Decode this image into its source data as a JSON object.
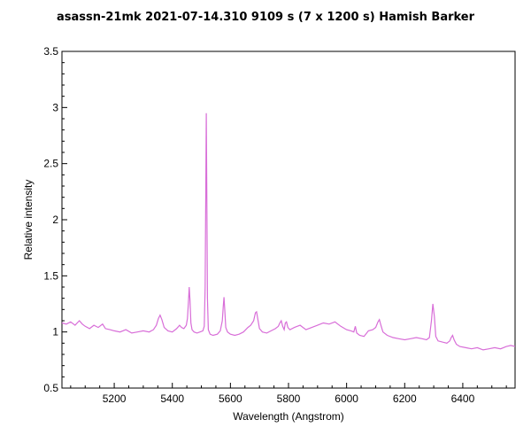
{
  "chart_data": {
    "type": "line",
    "title": "asassn-21mk   2021-07-14.310   9109 s (7 x 1200 s)   Hamish Barker",
    "xlabel": "Wavelength (Angstrom)",
    "ylabel": "Relative intensity",
    "xlim": [
      5020,
      6580
    ],
    "ylim": [
      0.5,
      3.5
    ],
    "x_ticks": [
      5200,
      5400,
      5600,
      5800,
      6000,
      6200,
      6400
    ],
    "x_tick_labels": [
      "5200",
      "5400",
      "5600",
      "5800",
      "6000",
      "6200",
      "6400"
    ],
    "y_ticks": [
      0.5,
      1,
      1.5,
      2,
      2.5,
      3,
      3.5
    ],
    "y_tick_labels": [
      "0.5",
      "1",
      "1.5",
      "2",
      "2.5",
      "3",
      "3.5"
    ],
    "grid": false,
    "series": [
      {
        "color": "#d86ed8",
        "x": [
          5020,
          5035,
          5050,
          5065,
          5080,
          5090,
          5100,
          5115,
          5130,
          5145,
          5160,
          5170,
          5185,
          5200,
          5220,
          5240,
          5260,
          5280,
          5300,
          5320,
          5335,
          5345,
          5352,
          5358,
          5364,
          5372,
          5385,
          5400,
          5415,
          5425,
          5432,
          5440,
          5448,
          5452,
          5455,
          5458,
          5461,
          5464,
          5468,
          5475,
          5485,
          5495,
          5505,
          5510,
          5513,
          5515,
          5517,
          5519,
          5521,
          5524,
          5530,
          5540,
          5555,
          5565,
          5572,
          5575,
          5578,
          5581,
          5584,
          5590,
          5600,
          5615,
          5630,
          5645,
          5660,
          5670,
          5680,
          5686,
          5690,
          5694,
          5700,
          5710,
          5725,
          5740,
          5755,
          5765,
          5770,
          5775,
          5780,
          5785,
          5789,
          5793,
          5798,
          5805,
          5820,
          5840,
          5860,
          5880,
          5900,
          5920,
          5940,
          5960,
          5980,
          6000,
          6015,
          6025,
          6030,
          6035,
          6045,
          6060,
          6075,
          6090,
          6100,
          6108,
          6113,
          6118,
          6125,
          6140,
          6160,
          6180,
          6200,
          6220,
          6240,
          6260,
          6275,
          6285,
          6292,
          6297,
          6302,
          6307,
          6315,
          6330,
          6345,
          6355,
          6360,
          6365,
          6370,
          6378,
          6390,
          6410,
          6430,
          6450,
          6470,
          6490,
          6510,
          6530,
          6550,
          6565,
          6580
        ],
        "y": [
          1.08,
          1.07,
          1.09,
          1.06,
          1.1,
          1.07,
          1.05,
          1.03,
          1.06,
          1.04,
          1.07,
          1.03,
          1.02,
          1.01,
          1.0,
          1.02,
          0.99,
          1.0,
          1.01,
          1.0,
          1.02,
          1.06,
          1.12,
          1.15,
          1.11,
          1.04,
          1.01,
          1.0,
          1.03,
          1.06,
          1.04,
          1.03,
          1.06,
          1.12,
          1.25,
          1.4,
          1.28,
          1.08,
          1.02,
          1.0,
          0.99,
          1.0,
          1.01,
          1.05,
          1.4,
          2.2,
          2.95,
          2.1,
          1.3,
          1.02,
          0.98,
          0.97,
          0.98,
          1.01,
          1.1,
          1.22,
          1.31,
          1.18,
          1.04,
          1.0,
          0.98,
          0.97,
          0.98,
          1.0,
          1.04,
          1.06,
          1.1,
          1.17,
          1.18,
          1.12,
          1.03,
          1.0,
          0.99,
          1.01,
          1.03,
          1.05,
          1.08,
          1.1,
          1.05,
          1.02,
          1.08,
          1.09,
          1.04,
          1.02,
          1.04,
          1.06,
          1.02,
          1.04,
          1.06,
          1.08,
          1.07,
          1.09,
          1.05,
          1.02,
          1.01,
          1.0,
          1.05,
          0.99,
          0.97,
          0.96,
          1.01,
          1.02,
          1.04,
          1.09,
          1.11,
          1.06,
          1.0,
          0.97,
          0.95,
          0.94,
          0.93,
          0.94,
          0.95,
          0.94,
          0.93,
          0.95,
          1.1,
          1.25,
          1.14,
          0.96,
          0.92,
          0.91,
          0.9,
          0.92,
          0.95,
          0.97,
          0.93,
          0.89,
          0.87,
          0.86,
          0.85,
          0.86,
          0.84,
          0.85,
          0.86,
          0.85,
          0.87,
          0.88,
          0.87
        ]
      }
    ]
  }
}
